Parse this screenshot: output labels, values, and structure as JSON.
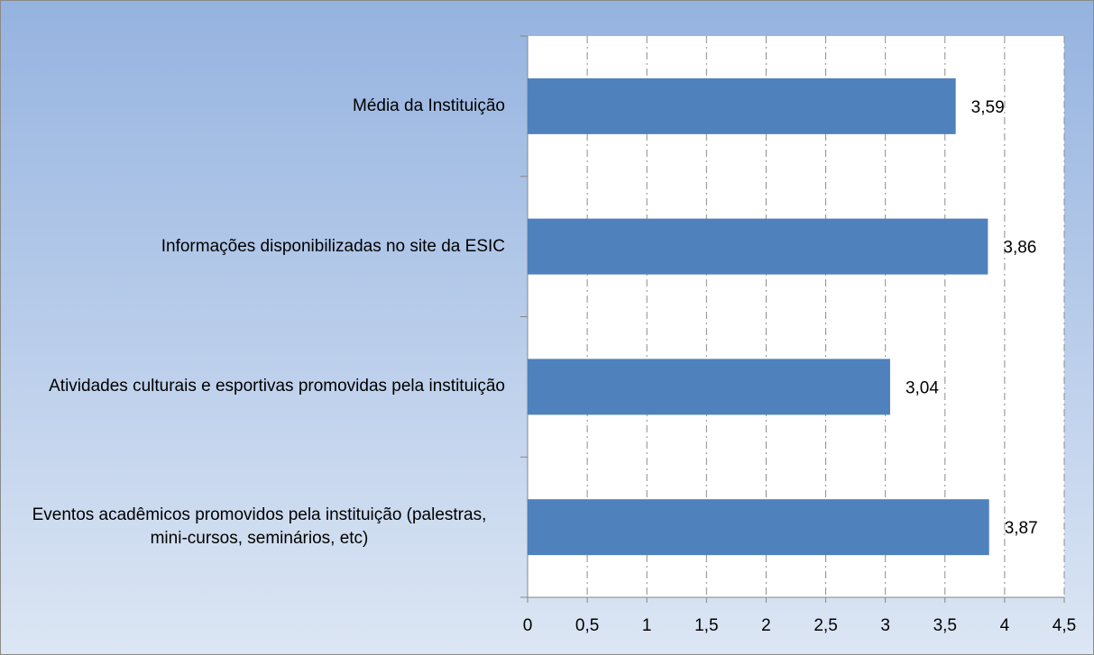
{
  "chart_data": {
    "type": "bar",
    "orientation": "horizontal",
    "categories": [
      "Média da Instituição",
      "Informações disponibilizadas no site da ESIC",
      "Atividades culturais e esportivas promovidas pela instituição",
      "Eventos acadêmicos promovidos pela instituição (palestras, mini-cursos, seminários, etc)"
    ],
    "values": [
      3.59,
      3.86,
      3.04,
      3.87
    ],
    "value_labels": [
      "3,59",
      "3,86",
      "3,04",
      "3,87"
    ],
    "color": "#4f81bd",
    "xlim": [
      0,
      4.5
    ],
    "xticks": [
      0,
      {
        "value": 0.5,
        "label": "0,5"
      },
      1,
      {
        "value": 1.5,
        "label": "1,5"
      },
      2,
      {
        "value": 2.5,
        "label": "2,5"
      },
      3,
      {
        "value": 3.5,
        "label": "3,5"
      },
      4,
      {
        "value": 4.5,
        "label": "4,5"
      }
    ],
    "grid": true
  }
}
